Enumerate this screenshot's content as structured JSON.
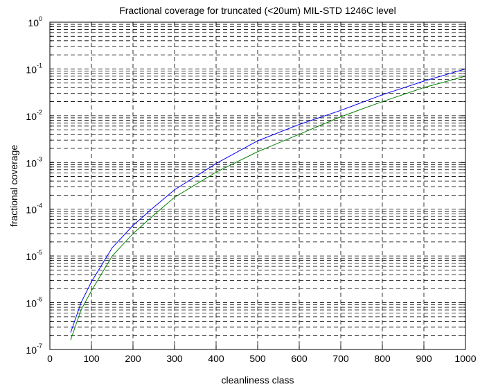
{
  "chart_data": {
    "type": "line",
    "title": "Fractional coverage for truncated (<20um) MIL-STD 1246C level",
    "xlabel": "cleanliness class",
    "ylabel": "fractional coverage",
    "xlim": [
      0,
      1000
    ],
    "ylim": [
      1e-07,
      1
    ],
    "yscale": "log",
    "grid": true,
    "x_ticks": [
      0,
      100,
      200,
      300,
      400,
      500,
      600,
      700,
      800,
      900,
      1000
    ],
    "y_ticks": [
      {
        "base": "10",
        "exp": "-7"
      },
      {
        "base": "10",
        "exp": "-6"
      },
      {
        "base": "10",
        "exp": "-5"
      },
      {
        "base": "10",
        "exp": "-4"
      },
      {
        "base": "10",
        "exp": "-3"
      },
      {
        "base": "10",
        "exp": "-2"
      },
      {
        "base": "10",
        "exp": "-1"
      },
      {
        "base": "10",
        "exp": "0"
      }
    ],
    "x": [
      50,
      75,
      100,
      150,
      200,
      250,
      300,
      400,
      500,
      600,
      700,
      800,
      900,
      1000
    ],
    "series": [
      {
        "color": "#0000ff",
        "values": [
          2.3e-07,
          1e-06,
          2.8e-06,
          1.5e-05,
          4.5e-05,
          0.00011,
          0.00026,
          0.00095,
          0.0029,
          0.0065,
          0.013,
          0.028,
          0.055,
          0.1
        ]
      },
      {
        "color": "#008000",
        "values": [
          1.6e-07,
          7e-07,
          1.8e-06,
          1e-05,
          3e-05,
          7.5e-05,
          0.00018,
          0.00062,
          0.0017,
          0.004,
          0.0095,
          0.02,
          0.04,
          0.07
        ]
      }
    ]
  }
}
